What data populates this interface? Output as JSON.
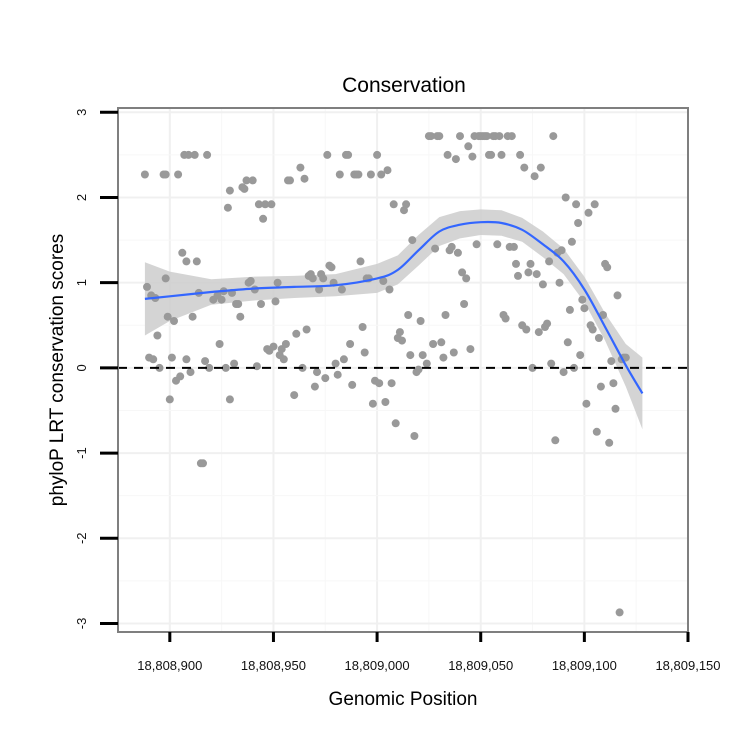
{
  "chart_data": {
    "type": "scatter",
    "title": "Conservation",
    "xlabel": "Genomic Position",
    "ylabel": "phyloP LRT conservation scores",
    "xlim": [
      18808875,
      18809150
    ],
    "ylim": [
      -3.1,
      3.05
    ],
    "x_ticks": [
      {
        "value": 18808900,
        "label": "18,808,900"
      },
      {
        "value": 18808950,
        "label": "18,808,950"
      },
      {
        "value": 18809000,
        "label": "18,809,000"
      },
      {
        "value": 18809050,
        "label": "18,809,050"
      },
      {
        "value": 18809100,
        "label": "18,809,100"
      },
      {
        "value": 18809150,
        "label": "18,809,150"
      }
    ],
    "y_ticks": [
      {
        "value": 3,
        "label": "3"
      },
      {
        "value": 2,
        "label": "2"
      },
      {
        "value": 1,
        "label": "1"
      },
      {
        "value": 0,
        "label": "0"
      },
      {
        "value": -1,
        "label": "-1"
      },
      {
        "value": -2,
        "label": "-2"
      },
      {
        "value": -3,
        "label": "-3"
      }
    ],
    "grid": true,
    "reference_line": {
      "y": 0,
      "style": "dashed"
    },
    "colors": {
      "points": "#999999",
      "smooth_line": "#3366ff",
      "ribbon": "#cccccc",
      "reference": "#000000",
      "border": "#7f7f7f",
      "grid": "#f0f0f0"
    },
    "series": [
      {
        "name": "scores",
        "points": [
          [
            18808888,
            2.27
          ],
          [
            18808889,
            0.95
          ],
          [
            18808890,
            0.12
          ],
          [
            18808891,
            0.85
          ],
          [
            18808892,
            0.1
          ],
          [
            18808893,
            0.82
          ],
          [
            18808894,
            0.38
          ],
          [
            18808895,
            0.0
          ],
          [
            18808897,
            2.27
          ],
          [
            18808898,
            2.27
          ],
          [
            18808898,
            1.05
          ],
          [
            18808899,
            0.6
          ],
          [
            18808900,
            -0.37
          ],
          [
            18808901,
            0.12
          ],
          [
            18808902,
            0.55
          ],
          [
            18808903,
            -0.15
          ],
          [
            18808904,
            2.27
          ],
          [
            18808905,
            -0.1
          ],
          [
            18808906,
            1.35
          ],
          [
            18808907,
            2.5
          ],
          [
            18808908,
            1.25
          ],
          [
            18808908,
            0.1
          ],
          [
            18808909,
            2.5
          ],
          [
            18808910,
            -0.05
          ],
          [
            18808911,
            0.6
          ],
          [
            18808912,
            2.5
          ],
          [
            18808913,
            1.25
          ],
          [
            18808914,
            0.88
          ],
          [
            18808915,
            -1.12
          ],
          [
            18808916,
            -1.12
          ],
          [
            18808917,
            0.08
          ],
          [
            18808918,
            2.5
          ],
          [
            18808919,
            0.0
          ],
          [
            18808921,
            0.8
          ],
          [
            18808923,
            0.85
          ],
          [
            18808924,
            0.28
          ],
          [
            18808925,
            0.8
          ],
          [
            18808926,
            0.9
          ],
          [
            18808927,
            0.0
          ],
          [
            18808928,
            1.88
          ],
          [
            18808929,
            2.08
          ],
          [
            18808929,
            -0.37
          ],
          [
            18808930,
            0.88
          ],
          [
            18808931,
            0.05
          ],
          [
            18808932,
            0.75
          ],
          [
            18808933,
            0.75
          ],
          [
            18808934,
            0.6
          ],
          [
            18808935,
            2.12
          ],
          [
            18808936,
            2.1
          ],
          [
            18808937,
            2.2
          ],
          [
            18808938,
            1.0
          ],
          [
            18808939,
            1.02
          ],
          [
            18808940,
            2.2
          ],
          [
            18808941,
            0.92
          ],
          [
            18808942,
            0.02
          ],
          [
            18808943,
            1.92
          ],
          [
            18808944,
            0.75
          ],
          [
            18808945,
            1.75
          ],
          [
            18808946,
            1.92
          ],
          [
            18808947,
            0.22
          ],
          [
            18808948,
            0.2
          ],
          [
            18808949,
            1.92
          ],
          [
            18808950,
            0.25
          ],
          [
            18808951,
            0.78
          ],
          [
            18808952,
            1.0
          ],
          [
            18808953,
            0.15
          ],
          [
            18808954,
            0.22
          ],
          [
            18808955,
            0.1
          ],
          [
            18808956,
            0.28
          ],
          [
            18808957,
            2.2
          ],
          [
            18808958,
            2.2
          ],
          [
            18808960,
            -0.32
          ],
          [
            18808961,
            0.4
          ],
          [
            18808963,
            2.35
          ],
          [
            18808964,
            0.0
          ],
          [
            18808965,
            2.22
          ],
          [
            18808966,
            0.45
          ],
          [
            18808967,
            1.08
          ],
          [
            18808968,
            1.1
          ],
          [
            18808969,
            1.05
          ],
          [
            18808970,
            -0.22
          ],
          [
            18808971,
            -0.05
          ],
          [
            18808972,
            0.92
          ],
          [
            18808973,
            1.1
          ],
          [
            18808974,
            1.05
          ],
          [
            18808975,
            -0.12
          ],
          [
            18808976,
            2.5
          ],
          [
            18808977,
            1.2
          ],
          [
            18808978,
            1.18
          ],
          [
            18808979,
            1.0
          ],
          [
            18808980,
            0.05
          ],
          [
            18808981,
            -0.08
          ],
          [
            18808982,
            2.27
          ],
          [
            18808983,
            0.92
          ],
          [
            18808984,
            0.1
          ],
          [
            18808985,
            2.5
          ],
          [
            18808986,
            2.5
          ],
          [
            18808987,
            0.28
          ],
          [
            18808988,
            -0.2
          ],
          [
            18808989,
            2.27
          ],
          [
            18808990,
            2.27
          ],
          [
            18808991,
            2.27
          ],
          [
            18808992,
            1.25
          ],
          [
            18808993,
            0.48
          ],
          [
            18808994,
            0.18
          ],
          [
            18808995,
            1.05
          ],
          [
            18808996,
            1.05
          ],
          [
            18808997,
            2.27
          ],
          [
            18808998,
            -0.42
          ],
          [
            18808999,
            -0.15
          ],
          [
            18809000,
            2.5
          ],
          [
            18809001,
            -0.18
          ],
          [
            18809002,
            2.27
          ],
          [
            18809003,
            1.02
          ],
          [
            18809004,
            -0.4
          ],
          [
            18809005,
            2.32
          ],
          [
            18809006,
            0.92
          ],
          [
            18809007,
            -0.18
          ],
          [
            18809008,
            1.92
          ],
          [
            18809009,
            -0.65
          ],
          [
            18809010,
            0.35
          ],
          [
            18809011,
            0.42
          ],
          [
            18809012,
            0.32
          ],
          [
            18809013,
            1.85
          ],
          [
            18809014,
            1.92
          ],
          [
            18809015,
            0.62
          ],
          [
            18809016,
            0.15
          ],
          [
            18809017,
            1.5
          ],
          [
            18809018,
            -0.8
          ],
          [
            18809019,
            -0.05
          ],
          [
            18809020,
            -0.02
          ],
          [
            18809021,
            0.55
          ],
          [
            18809022,
            0.15
          ],
          [
            18809024,
            0.05
          ],
          [
            18809025,
            2.72
          ],
          [
            18809026,
            2.72
          ],
          [
            18809027,
            0.28
          ],
          [
            18809028,
            1.4
          ],
          [
            18809029,
            2.72
          ],
          [
            18809030,
            2.72
          ],
          [
            18809031,
            0.3
          ],
          [
            18809032,
            0.12
          ],
          [
            18809033,
            0.62
          ],
          [
            18809034,
            2.5
          ],
          [
            18809035,
            1.38
          ],
          [
            18809036,
            1.42
          ],
          [
            18809037,
            0.18
          ],
          [
            18809038,
            2.45
          ],
          [
            18809039,
            1.35
          ],
          [
            18809040,
            2.72
          ],
          [
            18809041,
            1.12
          ],
          [
            18809042,
            0.75
          ],
          [
            18809043,
            1.05
          ],
          [
            18809044,
            2.6
          ],
          [
            18809045,
            0.22
          ],
          [
            18809046,
            2.48
          ],
          [
            18809047,
            2.72
          ],
          [
            18809048,
            1.45
          ],
          [
            18809049,
            2.72
          ],
          [
            18809050,
            2.72
          ],
          [
            18809051,
            2.72
          ],
          [
            18809052,
            2.72
          ],
          [
            18809053,
            2.72
          ],
          [
            18809054,
            2.5
          ],
          [
            18809055,
            2.5
          ],
          [
            18809056,
            2.72
          ],
          [
            18809057,
            2.72
          ],
          [
            18809058,
            1.45
          ],
          [
            18809059,
            2.72
          ],
          [
            18809060,
            2.5
          ],
          [
            18809061,
            0.62
          ],
          [
            18809062,
            0.58
          ],
          [
            18809063,
            2.72
          ],
          [
            18809064,
            1.42
          ],
          [
            18809065,
            2.72
          ],
          [
            18809066,
            1.42
          ],
          [
            18809067,
            1.22
          ],
          [
            18809068,
            1.08
          ],
          [
            18809069,
            2.5
          ],
          [
            18809070,
            0.5
          ],
          [
            18809071,
            2.35
          ],
          [
            18809072,
            0.45
          ],
          [
            18809073,
            1.12
          ],
          [
            18809074,
            1.22
          ],
          [
            18809075,
            0.0
          ],
          [
            18809076,
            2.25
          ],
          [
            18809077,
            1.1
          ],
          [
            18809078,
            0.42
          ],
          [
            18809079,
            2.35
          ],
          [
            18809080,
            0.98
          ],
          [
            18809081,
            0.48
          ],
          [
            18809082,
            0.52
          ],
          [
            18809083,
            1.25
          ],
          [
            18809084,
            0.05
          ],
          [
            18809085,
            2.72
          ],
          [
            18809086,
            -0.85
          ],
          [
            18809087,
            1.35
          ],
          [
            18809088,
            1.0
          ],
          [
            18809089,
            1.38
          ],
          [
            18809090,
            -0.05
          ],
          [
            18809091,
            2.0
          ],
          [
            18809092,
            0.3
          ],
          [
            18809093,
            0.68
          ],
          [
            18809094,
            1.48
          ],
          [
            18809095,
            0.0
          ],
          [
            18809096,
            1.92
          ],
          [
            18809097,
            1.7
          ],
          [
            18809098,
            0.15
          ],
          [
            18809099,
            0.8
          ],
          [
            18809100,
            0.7
          ],
          [
            18809101,
            -0.42
          ],
          [
            18809102,
            1.82
          ],
          [
            18809103,
            0.5
          ],
          [
            18809104,
            0.45
          ],
          [
            18809105,
            1.92
          ],
          [
            18809106,
            -0.75
          ],
          [
            18809107,
            0.35
          ],
          [
            18809108,
            -0.22
          ],
          [
            18809109,
            0.62
          ],
          [
            18809110,
            1.22
          ],
          [
            18809111,
            1.18
          ],
          [
            18809112,
            -0.88
          ],
          [
            18809113,
            0.08
          ],
          [
            18809114,
            -0.18
          ],
          [
            18809115,
            -0.48
          ],
          [
            18809116,
            0.85
          ],
          [
            18809117,
            -2.87
          ],
          [
            18809118,
            0.1
          ],
          [
            18809119,
            0.12
          ],
          [
            18809120,
            0.12
          ]
        ]
      },
      {
        "name": "smooth",
        "x": [
          18808888,
          18808900,
          18808920,
          18808940,
          18808960,
          18808980,
          18809000,
          18809010,
          18809020,
          18809030,
          18809040,
          18809050,
          18809060,
          18809070,
          18809080,
          18809090,
          18809100,
          18809110,
          18809120,
          18809128
        ],
        "y": [
          0.81,
          0.84,
          0.89,
          0.93,
          0.95,
          0.97,
          1.05,
          1.15,
          1.38,
          1.6,
          1.68,
          1.71,
          1.7,
          1.62,
          1.45,
          1.25,
          0.92,
          0.48,
          0.03,
          -0.3
        ],
        "ymin": [
          0.38,
          0.55,
          0.74,
          0.79,
          0.82,
          0.84,
          0.88,
          0.98,
          1.2,
          1.43,
          1.52,
          1.56,
          1.55,
          1.48,
          1.3,
          1.1,
          0.77,
          0.32,
          -0.22,
          -0.72
        ],
        "ymax": [
          1.24,
          1.13,
          1.04,
          1.07,
          1.08,
          1.1,
          1.22,
          1.32,
          1.56,
          1.77,
          1.84,
          1.86,
          1.85,
          1.76,
          1.6,
          1.4,
          1.07,
          0.64,
          0.28,
          0.12
        ]
      }
    ]
  }
}
